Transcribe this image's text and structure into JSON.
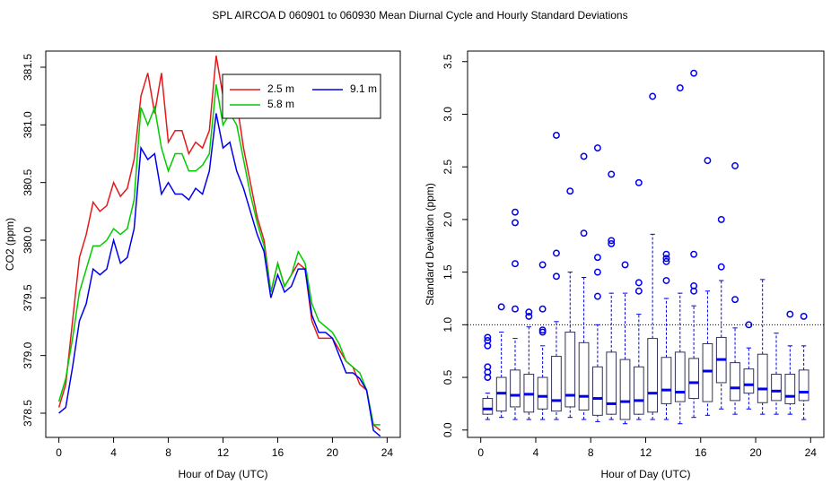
{
  "title": "SPL   AIRCOA D   060901 to 060930   Mean Diurnal Cycle and Hourly Standard Deviations",
  "chart_data": [
    {
      "type": "line",
      "xlabel": "Hour of Day (UTC)",
      "ylabel": "CO2 (ppm)",
      "x": [
        0,
        0.5,
        1,
        1.5,
        2,
        2.5,
        3,
        3.5,
        4,
        4.5,
        5,
        5.5,
        6,
        6.5,
        7,
        7.5,
        8,
        8.5,
        9,
        9.5,
        10,
        10.5,
        11,
        11.5,
        12,
        12.5,
        13,
        13.5,
        14,
        14.5,
        15,
        15.5,
        16,
        16.5,
        17,
        17.5,
        18,
        18.5,
        19,
        19.5,
        20,
        20.5,
        21,
        21.5,
        22,
        22.5,
        23,
        23.5
      ],
      "series": [
        {
          "name": "2.5 m",
          "color": "#e41a1c",
          "values": [
            378.55,
            378.75,
            379.3,
            379.85,
            380.05,
            380.33,
            380.25,
            380.3,
            380.5,
            380.38,
            380.45,
            380.7,
            381.25,
            381.45,
            381.1,
            381.45,
            380.85,
            380.95,
            380.95,
            380.75,
            380.85,
            380.8,
            380.95,
            381.6,
            381.25,
            381.35,
            381.2,
            380.8,
            380.5,
            380.2,
            380.0,
            379.55,
            379.8,
            379.6,
            379.7,
            379.8,
            379.75,
            379.3,
            379.15,
            379.15,
            379.15,
            379.05,
            378.95,
            378.9,
            378.75,
            378.7,
            378.4,
            378.35
          ]
        },
        {
          "name": "5.8 m",
          "color": "#00cc00",
          "values": [
            378.6,
            378.8,
            379.15,
            379.55,
            379.75,
            379.95,
            379.95,
            380.0,
            380.1,
            380.05,
            380.1,
            380.35,
            381.15,
            381.0,
            381.15,
            380.8,
            380.6,
            380.75,
            380.75,
            380.6,
            380.6,
            380.65,
            380.75,
            381.35,
            381.0,
            381.1,
            381.0,
            380.7,
            380.4,
            380.15,
            379.95,
            379.55,
            379.8,
            379.6,
            379.7,
            379.9,
            379.8,
            379.45,
            379.3,
            379.25,
            379.2,
            379.1,
            378.95,
            378.9,
            378.85,
            378.7,
            378.4,
            378.4
          ]
        },
        {
          "name": "9.1 m",
          "color": "#0000ee",
          "values": [
            378.5,
            378.55,
            378.9,
            379.3,
            379.45,
            379.75,
            379.7,
            379.75,
            380.0,
            379.8,
            379.85,
            380.1,
            380.8,
            380.7,
            380.75,
            380.4,
            380.5,
            380.4,
            380.4,
            380.35,
            380.45,
            380.4,
            380.6,
            381.1,
            380.8,
            380.85,
            380.6,
            380.45,
            380.25,
            380.05,
            379.9,
            379.5,
            379.7,
            379.55,
            379.6,
            379.75,
            379.75,
            379.35,
            379.2,
            379.2,
            379.15,
            379.0,
            378.85,
            378.85,
            378.8,
            378.7,
            378.35,
            378.3
          ]
        }
      ],
      "xlim": [
        -0.96,
        24.96
      ],
      "ylim": [
        378.29,
        381.64
      ],
      "xticks": [
        0,
        4,
        8,
        12,
        16,
        20,
        24
      ],
      "yticks": [
        378.5,
        {
          "value": 379,
          "label": "379.0"
        },
        379.5,
        {
          "value": 380,
          "label": "380.0"
        },
        380.5,
        {
          "value": 381,
          "label": "381.0"
        },
        381.5
      ],
      "legend": "topright"
    },
    {
      "type": "boxplot",
      "xlabel": "Hour of Day (UTC)",
      "ylabel": "Standard Deviation (ppm)",
      "x": [
        0.5,
        1.5,
        2.5,
        3.5,
        4.5,
        5.5,
        6.5,
        7.5,
        8.5,
        9.5,
        10.5,
        11.5,
        12.5,
        13.5,
        14.5,
        15.5,
        16.5,
        17.5,
        18.5,
        19.5,
        20.5,
        21.5,
        22.5,
        23.5
      ],
      "whisker_low": [
        0.1,
        0.12,
        0.1,
        0.1,
        0.1,
        0.1,
        0.12,
        0.1,
        0.08,
        0.1,
        0.06,
        0.1,
        0.1,
        0.1,
        0.06,
        0.12,
        0.14,
        0.2,
        0.15,
        0.2,
        0.15,
        0.15,
        0.15,
        0.1
      ],
      "q1": [
        0.15,
        0.18,
        0.22,
        0.17,
        0.2,
        0.18,
        0.22,
        0.19,
        0.14,
        0.15,
        0.1,
        0.15,
        0.17,
        0.25,
        0.27,
        0.3,
        0.27,
        0.45,
        0.28,
        0.35,
        0.26,
        0.28,
        0.25,
        0.28
      ],
      "median": [
        0.2,
        0.35,
        0.33,
        0.34,
        0.32,
        0.28,
        0.33,
        0.32,
        0.3,
        0.25,
        0.27,
        0.28,
        0.35,
        0.38,
        0.36,
        0.45,
        0.56,
        0.67,
        0.4,
        0.43,
        0.39,
        0.37,
        0.32,
        0.36
      ],
      "q3": [
        0.3,
        0.5,
        0.57,
        0.53,
        0.5,
        0.7,
        0.93,
        0.83,
        0.6,
        0.74,
        0.67,
        0.6,
        0.87,
        0.69,
        0.74,
        0.68,
        0.82,
        0.88,
        0.64,
        0.58,
        0.72,
        0.53,
        0.53,
        0.57
      ],
      "whisker_high": [
        0.35,
        0.93,
        0.87,
        0.98,
        0.8,
        1.03,
        1.5,
        1.45,
        1.0,
        1.3,
        1.3,
        1.1,
        1.86,
        1.25,
        1.3,
        1.18,
        1.32,
        1.42,
        0.97,
        0.78,
        1.43,
        0.92,
        0.8,
        0.8
      ],
      "outliers": [
        [
          0.5,
          0.55,
          0.6,
          0.8,
          0.85,
          0.88
        ],
        [
          1.17
        ],
        [
          1.15,
          1.58,
          1.97,
          2.07
        ],
        [
          1.08,
          1.12
        ],
        [
          0.93,
          0.95,
          1.15,
          1.57
        ],
        [
          1.46,
          1.68,
          2.8
        ],
        [
          2.27
        ],
        [
          1.87,
          2.6
        ],
        [
          1.27,
          1.5,
          1.64,
          2.68
        ],
        [
          1.77,
          1.8,
          2.43
        ],
        [
          1.57
        ],
        [
          1.32,
          1.4,
          2.35
        ],
        [
          3.17
        ],
        [
          1.42,
          1.6,
          1.63,
          1.67
        ],
        [
          3.25
        ],
        [
          1.32,
          1.37,
          1.67,
          3.39
        ],
        [
          2.56
        ],
        [
          1.55,
          2.0
        ],
        [
          1.24,
          2.51
        ],
        [
          1.0
        ],
        [],
        [],
        [
          1.1
        ],
        [
          1.08
        ]
      ],
      "color": "#0000ee",
      "box_color": "#333355",
      "hline": 1,
      "xlim": [
        -0.96,
        24.96
      ],
      "ylim": [
        -0.07,
        3.6
      ],
      "xticks": [
        0,
        4,
        8,
        12,
        16,
        20,
        24
      ],
      "yticks": [
        {
          "value": 0,
          "label": "0.0"
        },
        0.5,
        {
          "value": 1,
          "label": "1.0"
        },
        1.5,
        {
          "value": 2,
          "label": "2.0"
        },
        2.5,
        {
          "value": 3,
          "label": "3.0"
        },
        3.5
      ]
    }
  ]
}
